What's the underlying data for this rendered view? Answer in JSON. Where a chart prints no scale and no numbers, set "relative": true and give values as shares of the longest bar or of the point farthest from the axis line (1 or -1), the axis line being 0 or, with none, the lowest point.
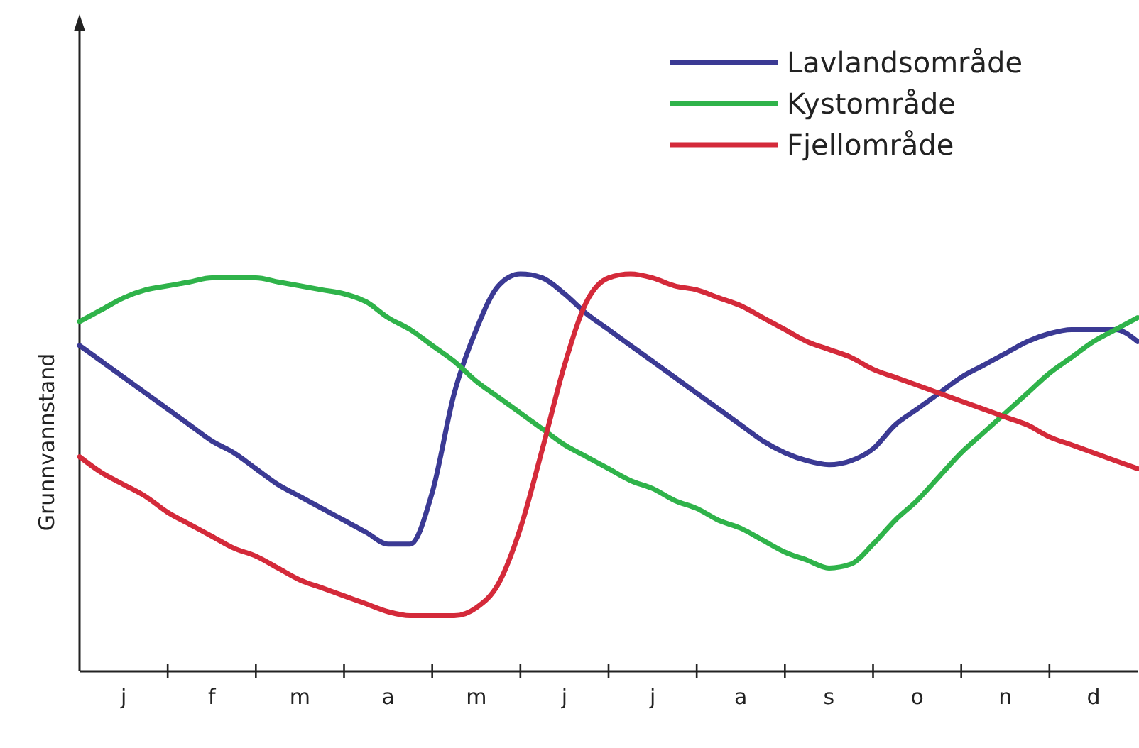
{
  "chart_data": {
    "type": "line",
    "relative": true,
    "ylabel": "Grunnvannstand",
    "legend": "top right",
    "categories": [
      null,
      null,
      "j",
      null,
      null,
      null,
      "f",
      null,
      null,
      null,
      "m",
      null,
      null,
      null,
      "a",
      null,
      null,
      null,
      "m",
      null,
      null,
      null,
      "j",
      null,
      null,
      null,
      "j",
      null,
      null,
      null,
      "a",
      null,
      null,
      null,
      "s",
      null,
      null,
      null,
      "o",
      null,
      null,
      null,
      "n",
      null,
      null,
      null,
      "d",
      null,
      null
    ],
    "series": [
      {
        "name": "Lavlandsområde",
        "color": "#3b3a94",
        "values": [
          0.82,
          0.78,
          0.74,
          0.7,
          0.66,
          0.62,
          0.58,
          0.55,
          0.51,
          0.47,
          0.44,
          0.41,
          0.38,
          0.35,
          0.32,
          0.32,
          0.45,
          0.7,
          0.86,
          0.97,
          1,
          0.99,
          0.95,
          0.9,
          0.86,
          0.82,
          0.78,
          0.74,
          0.7,
          0.66,
          0.62,
          0.58,
          0.55,
          0.53,
          0.52,
          0.53,
          0.56,
          0.62,
          0.66,
          0.7,
          0.74,
          0.77,
          0.8,
          0.83,
          0.85,
          0.86,
          0.86,
          0.86,
          0.83
        ]
      },
      {
        "name": "Kystområde",
        "color": "#2fb34a",
        "values": [
          0.88,
          0.91,
          0.94,
          0.96,
          0.97,
          0.98,
          0.99,
          0.99,
          0.99,
          0.98,
          0.97,
          0.96,
          0.95,
          0.93,
          0.89,
          0.86,
          0.82,
          0.78,
          0.73,
          0.69,
          0.65,
          0.61,
          0.57,
          0.54,
          0.51,
          0.48,
          0.46,
          0.43,
          0.41,
          0.38,
          0.36,
          0.33,
          0.3,
          0.28,
          0.26,
          0.27,
          0.32,
          0.38,
          0.43,
          0.49,
          0.55,
          0.6,
          0.65,
          0.7,
          0.75,
          0.79,
          0.83,
          0.86,
          0.89
        ]
      },
      {
        "name": "Fjellområde",
        "color": "#d42a3a",
        "values": [
          0.54,
          0.5,
          0.47,
          0.44,
          0.4,
          0.37,
          0.34,
          0.31,
          0.29,
          0.26,
          0.23,
          0.21,
          0.19,
          0.17,
          0.15,
          0.14,
          0.14,
          0.14,
          0.16,
          0.22,
          0.36,
          0.56,
          0.77,
          0.93,
          0.99,
          1,
          0.99,
          0.97,
          0.96,
          0.94,
          0.92,
          0.89,
          0.86,
          0.83,
          0.81,
          0.79,
          0.76,
          0.74,
          0.72,
          0.7,
          0.68,
          0.66,
          0.64,
          0.62,
          0.59,
          0.57,
          0.55,
          0.53,
          0.51
        ]
      }
    ]
  }
}
